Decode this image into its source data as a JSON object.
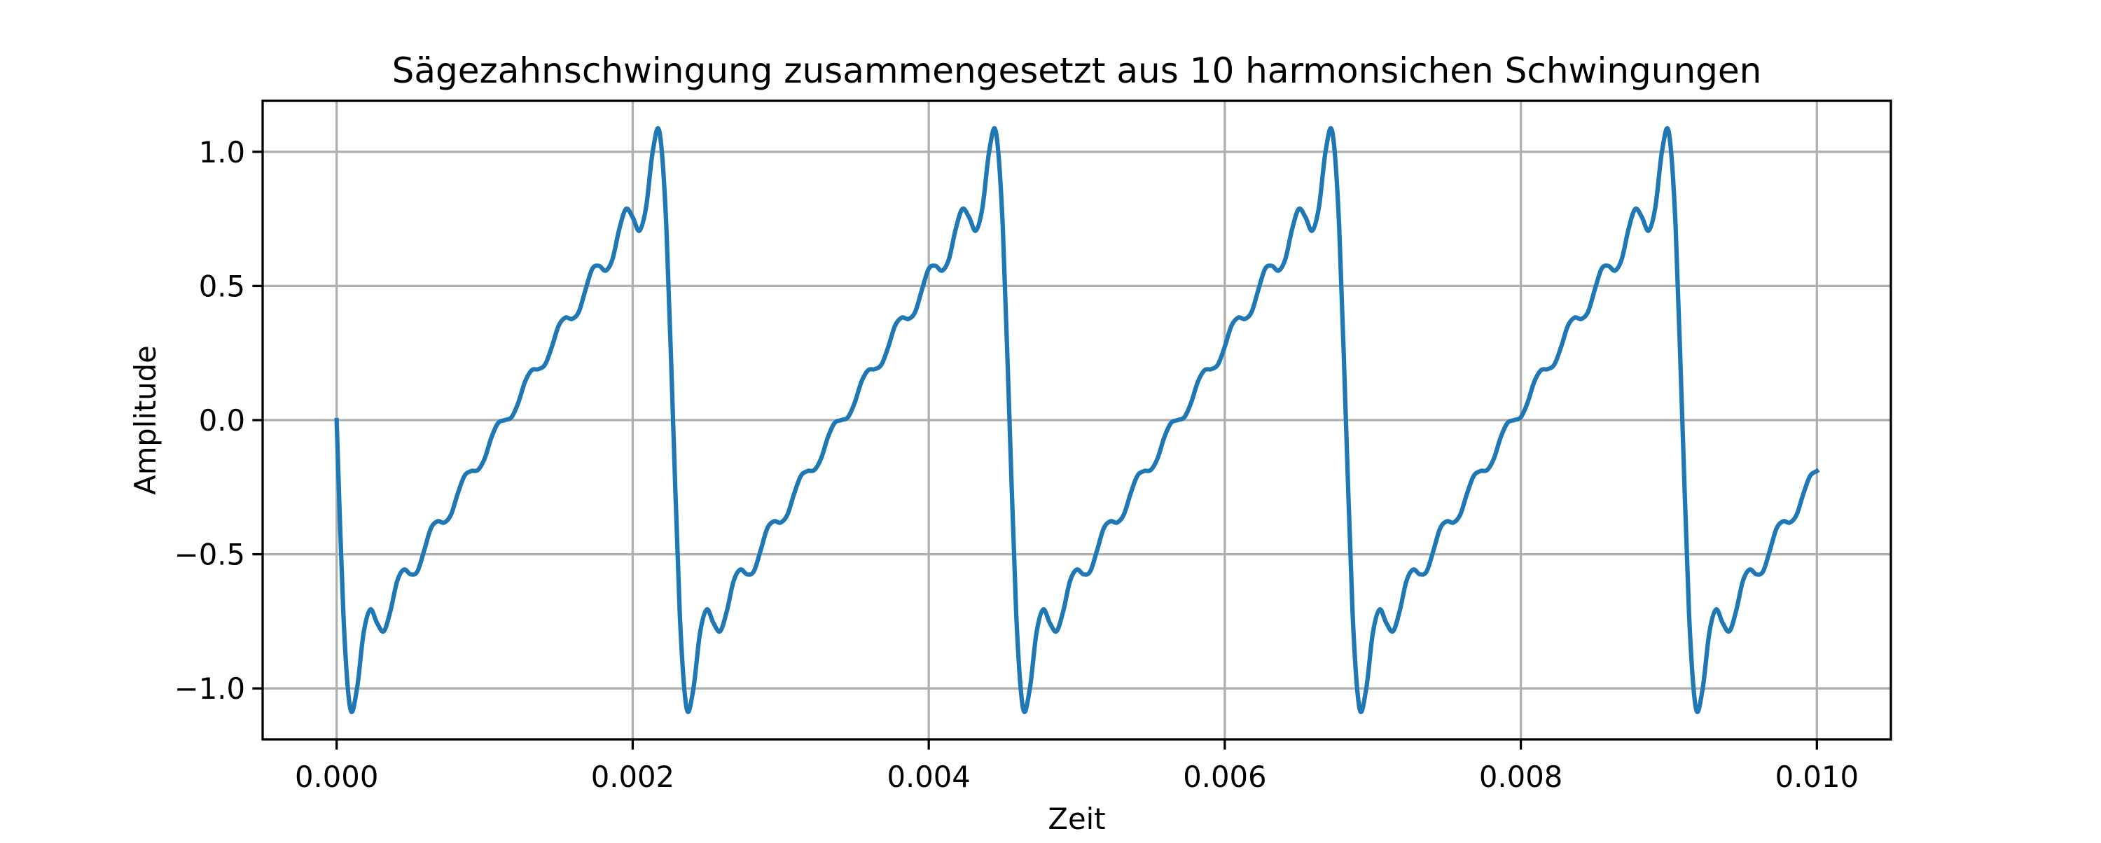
{
  "chart_data": {
    "type": "line",
    "title": "Sägezahnschwingung zusammengesetzt aus 10 harmonsichen Schwingungen",
    "xlabel": "Zeit",
    "ylabel": "Amplitude",
    "color": "#1f77b4",
    "grid": true,
    "xlim": [
      -0.0005,
      0.0105
    ],
    "ylim": [
      -1.19,
      1.19
    ],
    "xticks": [
      {
        "value": 0,
        "label": "0.000"
      },
      {
        "value": 0.002,
        "label": "0.002"
      },
      {
        "value": 0.004,
        "label": "0.004"
      },
      {
        "value": 0.006,
        "label": "0.006"
      },
      {
        "value": 0.008,
        "label": "0.008"
      },
      {
        "value": 0.01,
        "label": "0.010"
      }
    ],
    "yticks": [
      {
        "value": -1,
        "label": "−1.0"
      },
      {
        "value": -0.5,
        "label": "−0.5"
      },
      {
        "value": 0,
        "label": "0.0"
      },
      {
        "value": 0.5,
        "label": "0.5"
      },
      {
        "value": 1,
        "label": "1.0"
      }
    ],
    "x": [
      0,
      4.55e-05,
      9.09e-05,
      0.0001364,
      0.0001818,
      0.0002273,
      0.0002727,
      0.0003182,
      0.0003636,
      0.0004091,
      0.0004545,
      0.0005,
      0.0005455,
      0.0005909,
      0.0006364,
      0.0006818,
      0.0007273,
      0.0007727,
      0.0008182,
      0.0008636,
      0.0009091,
      0.0009545,
      0.001,
      0.0010455,
      0.0010909,
      0.0011364,
      0.0011818,
      0.0012273,
      0.0012727,
      0.0013182,
      0.0013636,
      0.0014091,
      0.0014545,
      0.0015,
      0.0015455,
      0.0015909,
      0.0016364,
      0.0016818,
      0.0017273,
      0.0017727,
      0.0018182,
      0.0018636,
      0.0019091,
      0.0019545,
      0.002,
      0.0020455,
      0.0020909,
      0.0021364,
      0.0021818,
      0.0022273,
      0.0022727,
      0.0023182,
      0.0023636,
      0.0024091,
      0.0024545,
      0.0025,
      0.0025455,
      0.0025909,
      0.0026364,
      0.0026818,
      0.0027273,
      0.0027727,
      0.0028182,
      0.0028636,
      0.0029091,
      0.0029545,
      0.003,
      0.0030455,
      0.0030909,
      0.0031364,
      0.0031818,
      0.0032273,
      0.0032727,
      0.0033182,
      0.0033636,
      0.0034091,
      0.0034545,
      0.0035,
      0.0035455,
      0.0035909,
      0.0036364,
      0.0036818,
      0.0037273,
      0.0037727,
      0.0038182,
      0.0038636,
      0.0039091,
      0.0039545,
      0.004,
      0.0040455,
      0.0040909,
      0.0041364,
      0.0041818,
      0.0042273,
      0.0042727,
      0.0043182,
      0.0043636,
      0.0044091,
      0.0044545,
      0.0045,
      0.0045455,
      0.0045909,
      0.0046364,
      0.0046818,
      0.0047273,
      0.0047727,
      0.0048182,
      0.0048636,
      0.0049091,
      0.0049545,
      0.005,
      0.0050455,
      0.0050909,
      0.0051364,
      0.0051818,
      0.0052273,
      0.0052727,
      0.0053182,
      0.0053636,
      0.0054091,
      0.0054545,
      0.0055,
      0.0055455,
      0.0055909,
      0.0056364,
      0.0056818,
      0.0057273,
      0.0057727,
      0.0058182,
      0.0058636,
      0.0059091,
      0.0059545,
      0.006,
      0.0060455,
      0.0060909,
      0.0061364,
      0.0061818,
      0.0062273,
      0.0062727,
      0.0063182,
      0.0063636,
      0.0064091,
      0.0064545,
      0.0065,
      0.0065455,
      0.0065909,
      0.0066364,
      0.0066818,
      0.0067273,
      0.0067727,
      0.0068182,
      0.0068636,
      0.0069091,
      0.0069545,
      0.007,
      0.0070455,
      0.0070909,
      0.0071364,
      0.0071818,
      0.0072273,
      0.0072727,
      0.0073182,
      0.0073636,
      0.0074091,
      0.0074545,
      0.0075,
      0.0075455,
      0.0075909,
      0.0076364,
      0.0076818,
      0.0077273,
      0.0077727,
      0.0078182,
      0.0078636,
      0.0079091,
      0.0079545,
      0.008,
      0.0080455,
      0.0080909,
      0.0081364,
      0.0081818,
      0.0082273,
      0.0082727,
      0.0083182,
      0.0083636,
      0.0084091,
      0.0084545,
      0.0085,
      0.0085455,
      0.0085909,
      0.0086364,
      0.0086818,
      0.0087273,
      0.0087727,
      0.0088182,
      0.0088636,
      0.0089091,
      0.0089545,
      0.009,
      0.0090455,
      0.0090909,
      0.0091364,
      0.0091818,
      0.0092273,
      0.0092727,
      0.0093182,
      0.0093636,
      0.0094091,
      0.0094545,
      0.0095,
      0.0095455,
      0.0095909,
      0.0096364,
      0.0096818,
      0.0097273,
      0.0097727,
      0.0098182,
      0.0098636,
      0.0099091,
      0.0099545,
      0.01
    ],
    "values": [
      0,
      -0.723,
      -1.072,
      -1.005,
      -0.795,
      -0.706,
      -0.756,
      -0.787,
      -0.711,
      -0.6,
      -0.557,
      -0.575,
      -0.564,
      -0.487,
      -0.404,
      -0.377,
      -0.382,
      -0.352,
      -0.274,
      -0.208,
      -0.19,
      -0.186,
      -0.143,
      -0.065,
      -0.011,
      0,
      0.011,
      0.065,
      0.143,
      0.186,
      0.19,
      0.208,
      0.274,
      0.352,
      0.382,
      0.377,
      0.404,
      0.487,
      0.564,
      0.575,
      0.557,
      0.6,
      0.711,
      0.787,
      0.756,
      0.706,
      0.795,
      1.005,
      1.072,
      0.723,
      0,
      -0.723,
      -1.072,
      -1.005,
      -0.795,
      -0.706,
      -0.756,
      -0.787,
      -0.711,
      -0.6,
      -0.557,
      -0.575,
      -0.564,
      -0.487,
      -0.404,
      -0.377,
      -0.382,
      -0.352,
      -0.274,
      -0.208,
      -0.19,
      -0.186,
      -0.143,
      -0.065,
      -0.011,
      0,
      0.011,
      0.065,
      0.143,
      0.186,
      0.19,
      0.208,
      0.274,
      0.352,
      0.382,
      0.377,
      0.404,
      0.487,
      0.564,
      0.575,
      0.557,
      0.6,
      0.711,
      0.787,
      0.756,
      0.706,
      0.795,
      1.005,
      1.072,
      0.723,
      0,
      -0.723,
      -1.072,
      -1.005,
      -0.795,
      -0.706,
      -0.756,
      -0.787,
      -0.711,
      -0.6,
      -0.557,
      -0.575,
      -0.564,
      -0.487,
      -0.404,
      -0.377,
      -0.382,
      -0.352,
      -0.274,
      -0.208,
      -0.19,
      -0.186,
      -0.143,
      -0.065,
      -0.011,
      0,
      0.011,
      0.065,
      0.143,
      0.186,
      0.19,
      0.208,
      0.274,
      0.352,
      0.382,
      0.377,
      0.404,
      0.487,
      0.564,
      0.575,
      0.557,
      0.6,
      0.711,
      0.787,
      0.756,
      0.706,
      0.795,
      1.005,
      1.072,
      0.723,
      0,
      -0.723,
      -1.072,
      -1.005,
      -0.795,
      -0.706,
      -0.756,
      -0.787,
      -0.711,
      -0.6,
      -0.557,
      -0.575,
      -0.564,
      -0.487,
      -0.404,
      -0.377,
      -0.382,
      -0.352,
      -0.274,
      -0.208,
      -0.19,
      -0.186,
      -0.143,
      -0.065,
      -0.011,
      0,
      0.011,
      0.065,
      0.143,
      0.186,
      0.19,
      0.208,
      0.274,
      0.352,
      0.382,
      0.377,
      0.404,
      0.487,
      0.564,
      0.575,
      0.557,
      0.6,
      0.711,
      0.787,
      0.756,
      0.706,
      0.795,
      1.005,
      1.072,
      0.723,
      0,
      -0.723,
      -1.072,
      -1.005,
      -0.795,
      -0.706,
      -0.756,
      -0.787,
      -0.711,
      -0.6,
      -0.557,
      -0.575,
      -0.564,
      -0.487,
      -0.404,
      -0.377,
      -0.382,
      -0.352,
      -0.274,
      -0.208,
      -0.19
    ]
  }
}
